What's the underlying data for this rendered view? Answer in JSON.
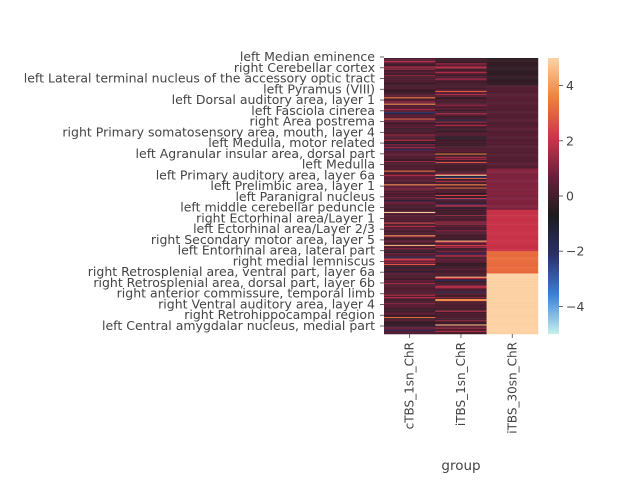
{
  "chart_data": {
    "type": "heatmap",
    "title": "",
    "xlabel": "group",
    "ylabel": "",
    "columns": [
      "cTBS_1sn_ChR",
      "iTBS_1sn_ChR",
      "iTBS_30sn_ChR"
    ],
    "row_labels": [
      "left Median eminence",
      "right Cerebellar cortex",
      "left Lateral terminal nucleus of the accessory optic tract",
      "left Pyramus (VIII)",
      "left Dorsal auditory area, layer 1",
      "left Fasciola cinerea",
      "right Area postrema",
      "right Primary somatosensory area, mouth, layer 4",
      "left Medulla, motor related",
      "left Agranular insular area, dorsal part",
      "left Medulla",
      "left Primary auditory area, layer 6a",
      "left Prelimbic area, layer 1",
      "left Paranigral nucleus",
      "left middle cerebellar peduncle",
      "right Ectorhinal area/Layer 1",
      "left Ectorhinal area/Layer 2/3",
      "right Secondary motor area, layer 5",
      "left Entorhinal area, lateral part",
      "right medial lemniscus",
      "right Retrosplenial area, ventral part, layer 6a",
      "right Retrosplenial area, dorsal part, layer 6b",
      "right anterior commissure, temporal limb",
      "right Ventral auditory area, layer 4",
      "right Retrohippocampal region",
      "left Central amygdalar nucleus, medial part"
    ],
    "row_count_estimated": 260,
    "value_range": [
      -5,
      5
    ],
    "colorbar": {
      "ticks": [
        4,
        2,
        0,
        -2,
        -4
      ],
      "colormap": "icefire",
      "colors": [
        "#c6f0ee",
        "#3b7fd9",
        "#2b2f6a",
        "#1c1c1c",
        "#6b1f3c",
        "#d2344a",
        "#f0813a",
        "#fdd3a6"
      ]
    },
    "column_profiles": [
      {
        "column": "cTBS_1sn_ChR",
        "description_values": "mostly near 0 with scattered values between -2 and 5",
        "typical_value": 0.2
      },
      {
        "column": "iTBS_1sn_ChR",
        "description_values": "mostly near 0 with scattered values between -2 and 3",
        "typical_value": 0.1
      },
      {
        "column": "iTBS_30sn_ChR",
        "segments": [
          {
            "rows_fraction": [
              0.0,
              0.1
            ],
            "value": -0.3
          },
          {
            "rows_fraction": [
              0.1,
              0.4
            ],
            "value": 0.3
          },
          {
            "rows_fraction": [
              0.4,
              0.55
            ],
            "value": 1.0
          },
          {
            "rows_fraction": [
              0.55,
              0.7
            ],
            "value": 2.0
          },
          {
            "rows_fraction": [
              0.7,
              0.78
            ],
            "value": 3.2
          },
          {
            "rows_fraction": [
              0.78,
              1.0
            ],
            "value": 5.0
          }
        ]
      }
    ]
  }
}
